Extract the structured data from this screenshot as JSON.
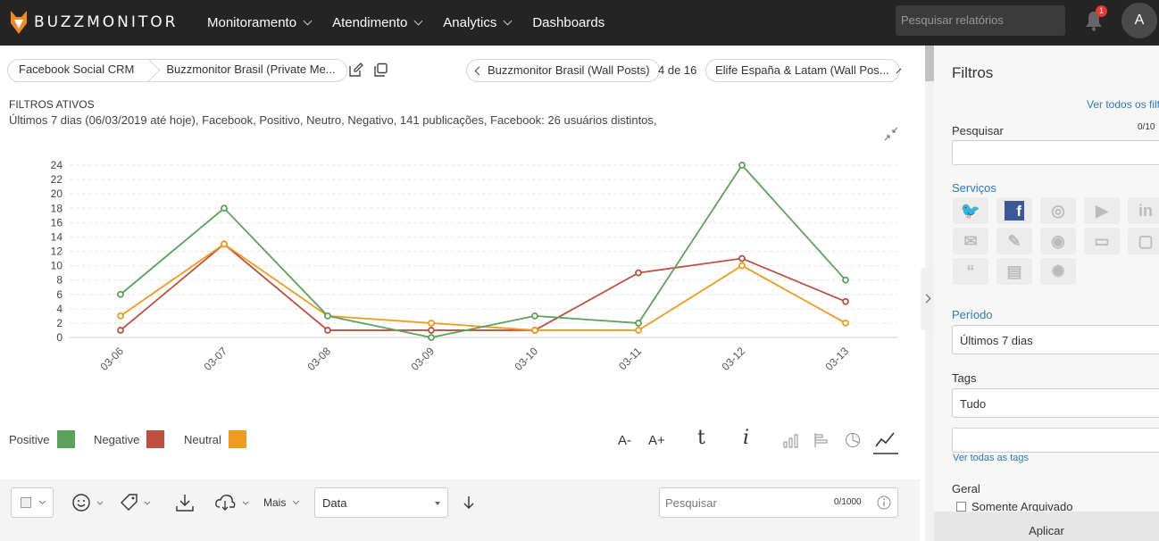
{
  "app": {
    "logo_text": "BUZZMONITOR"
  },
  "nav": [
    {
      "label": "Monitoramento",
      "has_menu": true
    },
    {
      "label": "Atendimento",
      "has_menu": true
    },
    {
      "label": "Analytics",
      "has_menu": true
    },
    {
      "label": "Dashboards",
      "has_menu": false
    }
  ],
  "header": {
    "search_placeholder": "Pesquisar relatórios",
    "notifications_count": "1",
    "avatar_initial": "A"
  },
  "breadcrumb": [
    "Facebook Social CRM",
    "Buzzmonitor Brasil (Private Me..."
  ],
  "pager": {
    "prev_label": "Buzzmonitor Brasil (Wall Posts)",
    "count": "4 de 16",
    "next_label": "Elife España & Latam (Wall Pos..."
  },
  "filters": {
    "title": "FILTROS ATIVOS",
    "description": "Últimos 7 dias (06/03/2019 até hoje), Facebook, Positivo, Neutro, Negativo, 141 publicações, Facebook: 26 usuários distintos,"
  },
  "chart_data": {
    "type": "line",
    "x": [
      "03-06",
      "03-07",
      "03-08",
      "03-09",
      "03-10",
      "03-11",
      "03-12",
      "03-13"
    ],
    "ylim": [
      0,
      24
    ],
    "yticks": [
      0,
      2,
      4,
      6,
      8,
      10,
      12,
      14,
      16,
      18,
      20,
      22,
      24
    ],
    "grid": true,
    "legend_position": "bottom-left",
    "series": [
      {
        "name": "Positive",
        "color": "#5ba35b",
        "values": [
          6,
          18,
          3,
          0,
          3,
          2,
          24,
          8
        ]
      },
      {
        "name": "Negative",
        "color": "#c0503e",
        "values": [
          1,
          13,
          1,
          1,
          1,
          9,
          11,
          5
        ]
      },
      {
        "name": "Neutral",
        "color": "#f09a1e",
        "values": [
          3,
          13,
          3,
          2,
          1,
          1,
          10,
          2
        ]
      }
    ]
  },
  "chart_tools": {
    "font_decrease": "A-",
    "font_increase": "A+",
    "tumblr": "t",
    "info": "i"
  },
  "bottombar": {
    "more_label": "Mais",
    "sort_value": "Data",
    "search_placeholder": "Pesquisar",
    "search_counter": "0/1000"
  },
  "sidebar": {
    "title": "Filtros",
    "see_all_filters": "Ver todos os filt",
    "search_label": "Pesquisar",
    "search_counter": "0/10",
    "services_label": "Serviços",
    "services": [
      "twitter-icon",
      "facebook-icon",
      "instagram-icon",
      "youtube-icon",
      "linkedin-icon",
      "email-icon",
      "ticket-icon",
      "camera-icon",
      "video-icon",
      "chat-icon",
      "quote-icon",
      "news-icon",
      "spark-icon"
    ],
    "period_label": "Período",
    "period_value": "Últimos 7 dias",
    "tags_label": "Tags",
    "tags_value": "Tudo",
    "see_all_tags": "Ver todas as tags",
    "general_label": "Geral",
    "only_archived": "Somente Arquivado",
    "apply_label": "Aplicar"
  }
}
